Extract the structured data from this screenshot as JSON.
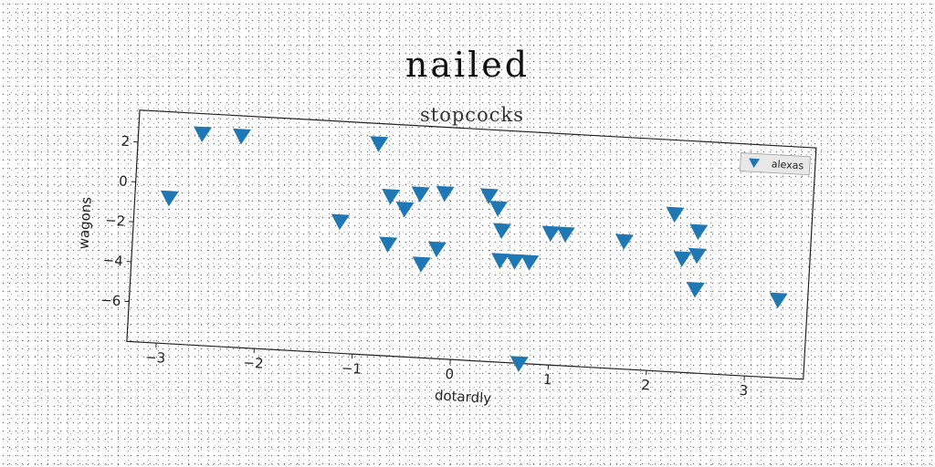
{
  "chart_data": {
    "type": "scatter",
    "title": "nailed",
    "subtitle": "stopcocks",
    "xlabel": "dotardly",
    "ylabel": "wagons",
    "xlim": [
      -3.3,
      3.6
    ],
    "ylim": [
      -8.0,
      3.6
    ],
    "xticks": [
      -3,
      -2,
      -1,
      0,
      1,
      2,
      3
    ],
    "yticks": [
      2,
      0,
      -2,
      -4,
      -6
    ],
    "xtick_labels": [
      "−3",
      "−2",
      "−1",
      "0",
      "1",
      "2",
      "3"
    ],
    "ytick_labels": [
      "2",
      "0",
      "−2",
      "−4",
      "−6"
    ],
    "legend_position": "top-right",
    "grid": false,
    "series": [
      {
        "name": "alexas",
        "color": "#1f77b4",
        "marker": "triangle-down",
        "points": [
          {
            "x": -2.95,
            "y": -0.7
          },
          {
            "x": -2.65,
            "y": 2.6
          },
          {
            "x": -2.25,
            "y": 2.6
          },
          {
            "x": -0.85,
            "y": 2.6
          },
          {
            "x": -1.2,
            "y": -1.4
          },
          {
            "x": -0.7,
            "y": 0.0
          },
          {
            "x": -0.55,
            "y": -0.6
          },
          {
            "x": -0.4,
            "y": 0.2
          },
          {
            "x": -0.15,
            "y": 0.3
          },
          {
            "x": -0.7,
            "y": -2.4
          },
          {
            "x": -0.35,
            "y": -3.3
          },
          {
            "x": -0.2,
            "y": -2.5
          },
          {
            "x": 0.3,
            "y": 0.3
          },
          {
            "x": 0.4,
            "y": -0.3
          },
          {
            "x": 0.45,
            "y": -1.4
          },
          {
            "x": 0.45,
            "y": -2.9
          },
          {
            "x": 0.6,
            "y": -2.9
          },
          {
            "x": 0.75,
            "y": -2.9
          },
          {
            "x": 0.95,
            "y": -1.4
          },
          {
            "x": 1.1,
            "y": -1.4
          },
          {
            "x": 0.7,
            "y": -8.0
          },
          {
            "x": 1.7,
            "y": -1.6
          },
          {
            "x": 2.2,
            "y": -0.1
          },
          {
            "x": 2.3,
            "y": -2.3
          },
          {
            "x": 2.45,
            "y": -2.1
          },
          {
            "x": 2.45,
            "y": -0.9
          },
          {
            "x": 2.45,
            "y": -3.8
          },
          {
            "x": 3.3,
            "y": -4.1
          }
        ]
      }
    ]
  }
}
